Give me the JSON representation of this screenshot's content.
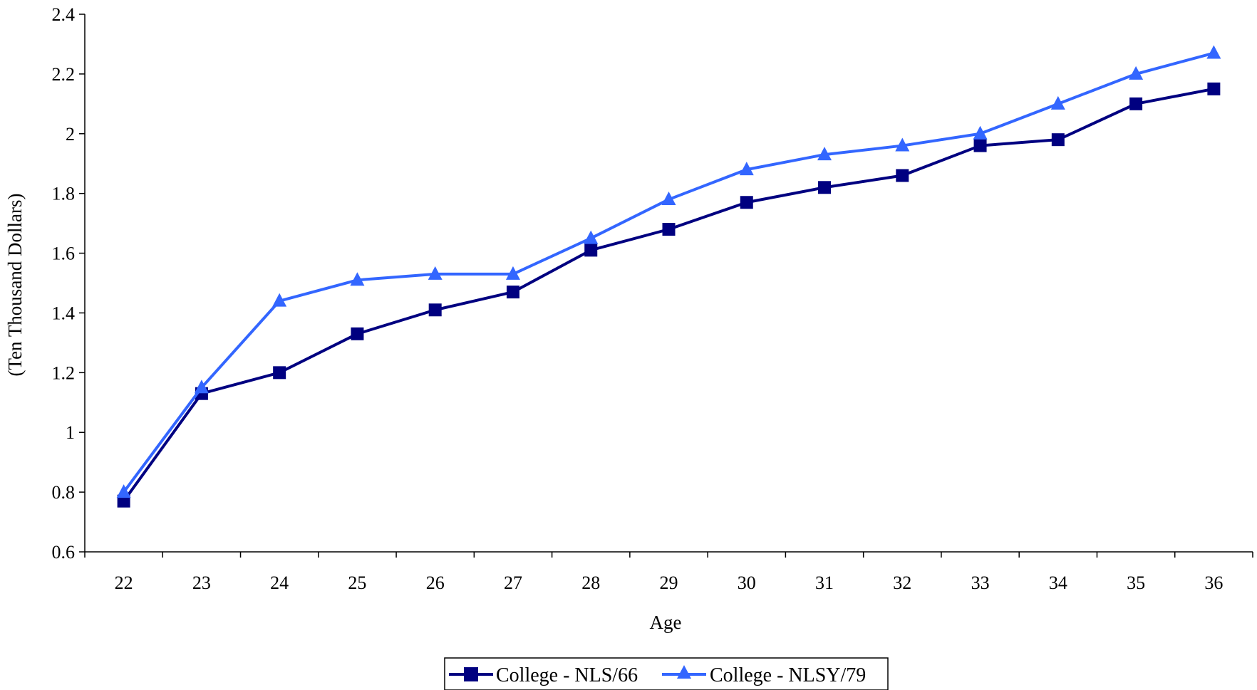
{
  "chart_data": {
    "type": "line",
    "title": "",
    "xlabel": "Age",
    "ylabel": "(Ten Thousand Dollars)",
    "categories": [
      "22",
      "23",
      "24",
      "25",
      "26",
      "27",
      "28",
      "29",
      "30",
      "31",
      "32",
      "33",
      "34",
      "35",
      "36"
    ],
    "ylim": [
      0.6,
      2.4
    ],
    "yticks": [
      "0.6",
      "0.8",
      "1",
      "1.2",
      "1.4",
      "1.6",
      "1.8",
      "2",
      "2.2",
      "2.4"
    ],
    "grid": false,
    "legend_position": "bottom",
    "series": [
      {
        "name": "College - NLS/66",
        "color": "#000080",
        "marker": "square",
        "values": [
          0.77,
          1.13,
          1.2,
          1.33,
          1.41,
          1.47,
          1.61,
          1.68,
          1.77,
          1.82,
          1.86,
          1.96,
          1.98,
          2.1,
          2.15
        ]
      },
      {
        "name": "College - NLSY/79",
        "color": "#3366FF",
        "marker": "triangle",
        "values": [
          0.8,
          1.15,
          1.44,
          1.51,
          1.53,
          1.53,
          1.65,
          1.78,
          1.88,
          1.93,
          1.96,
          2.0,
          2.1,
          2.2,
          2.27
        ]
      }
    ]
  }
}
